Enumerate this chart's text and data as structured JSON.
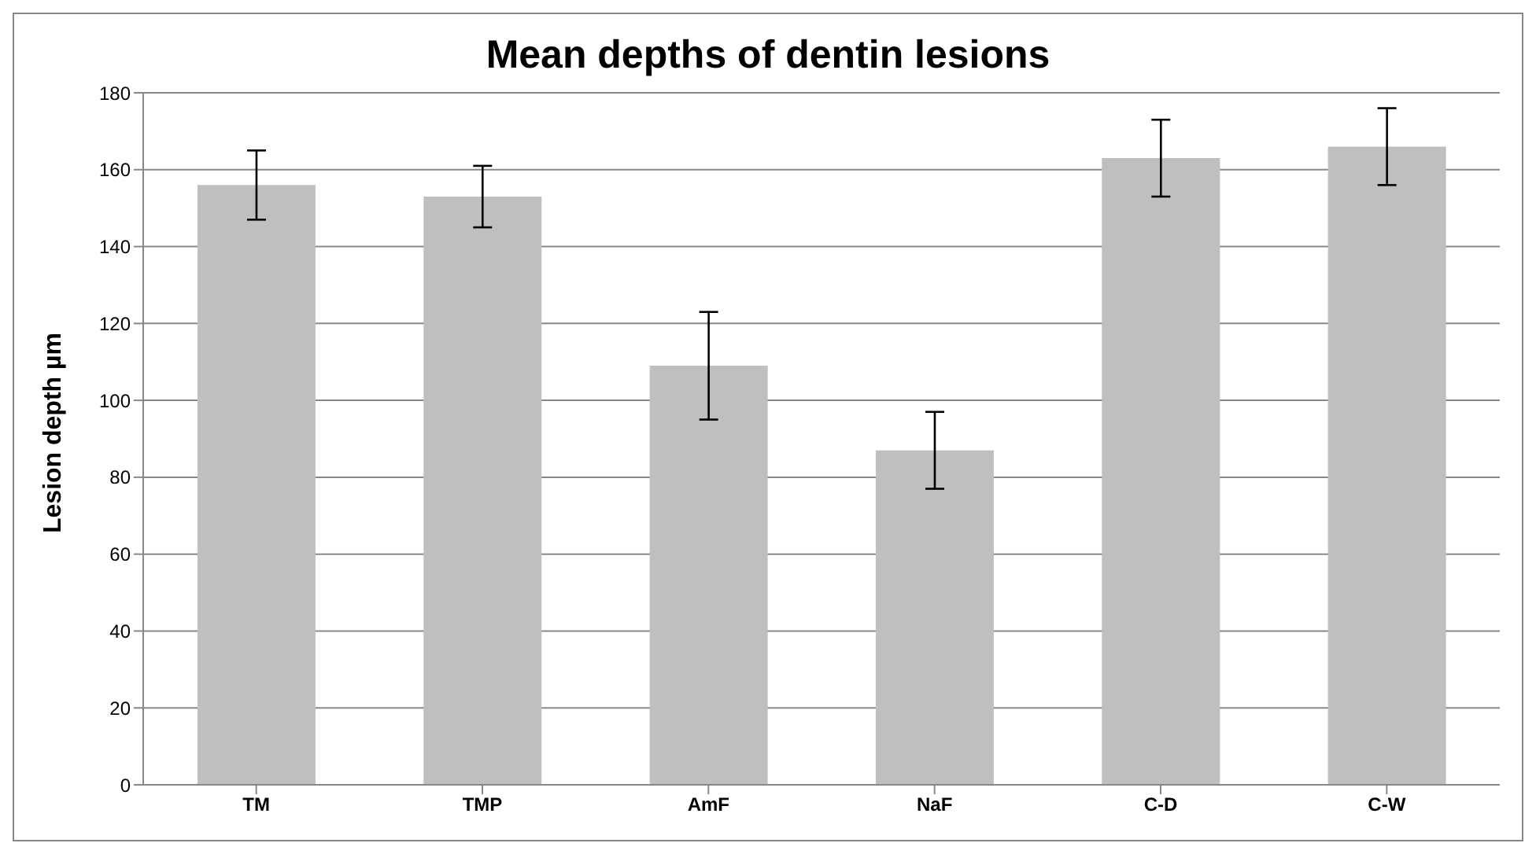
{
  "chart_data": {
    "type": "bar",
    "title": "Mean depths of dentin lesions",
    "ylabel": "Lesion depth µm",
    "categories": [
      "TM",
      "TMP",
      "AmF",
      "NaF",
      "C-D",
      "C-W"
    ],
    "values": [
      156,
      153,
      109,
      87,
      163,
      166
    ],
    "errors": [
      9,
      8,
      14,
      10,
      10,
      10
    ],
    "color": "#bfbfbf",
    "ylim": [
      0,
      180
    ],
    "yticks": [
      0,
      20,
      40,
      60,
      80,
      100,
      120,
      140,
      160,
      180
    ],
    "grid": "y",
    "legend": false
  }
}
